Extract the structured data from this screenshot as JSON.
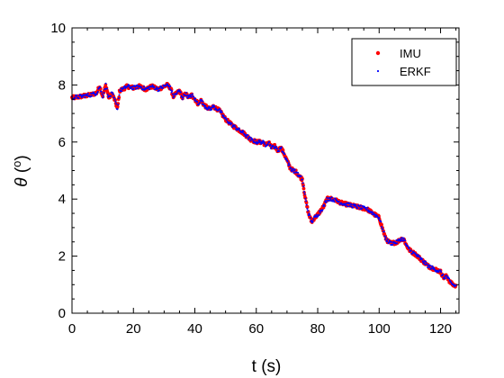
{
  "chart_data": {
    "type": "scatter",
    "title": "",
    "xlabel": "t (s)",
    "ylabel_symbol": "θ",
    "ylabel_open": " (",
    "ylabel_unit": "o",
    "ylabel_close": ")",
    "xlim": [
      0,
      126
    ],
    "ylim": [
      0,
      10
    ],
    "xticks": [
      0,
      20,
      40,
      60,
      80,
      100,
      120
    ],
    "yticks": [
      0,
      2,
      4,
      6,
      8,
      10
    ],
    "grid": false,
    "legend_position": "top-right",
    "series": [
      {
        "name": "IMU",
        "color": "#ff0000",
        "marker": "dot-large",
        "points": [
          [
            0,
            7.55
          ],
          [
            2,
            7.58
          ],
          [
            4,
            7.62
          ],
          [
            6,
            7.65
          ],
          [
            8,
            7.72
          ],
          [
            9,
            7.95
          ],
          [
            10,
            7.6
          ],
          [
            11,
            8.0
          ],
          [
            12,
            7.55
          ],
          [
            13,
            7.7
          ],
          [
            14,
            7.45
          ],
          [
            14.8,
            7.15
          ],
          [
            15.5,
            7.8
          ],
          [
            16.5,
            7.85
          ],
          [
            18,
            7.95
          ],
          [
            20,
            7.9
          ],
          [
            22,
            7.95
          ],
          [
            24,
            7.85
          ],
          [
            26,
            7.95
          ],
          [
            28,
            7.85
          ],
          [
            30,
            7.95
          ],
          [
            31,
            8.0
          ],
          [
            32,
            7.9
          ],
          [
            33,
            7.6
          ],
          [
            34,
            7.7
          ],
          [
            35,
            7.8
          ],
          [
            36,
            7.55
          ],
          [
            37,
            7.7
          ],
          [
            38,
            7.55
          ],
          [
            39,
            7.65
          ],
          [
            40,
            7.5
          ],
          [
            41,
            7.35
          ],
          [
            42,
            7.45
          ],
          [
            43,
            7.3
          ],
          [
            44,
            7.2
          ],
          [
            45,
            7.15
          ],
          [
            46,
            7.25
          ],
          [
            48,
            7.1
          ],
          [
            50,
            6.8
          ],
          [
            52,
            6.6
          ],
          [
            54,
            6.45
          ],
          [
            56,
            6.3
          ],
          [
            57,
            6.2
          ],
          [
            58,
            6.1
          ],
          [
            60,
            6.0
          ],
          [
            62,
            6.0
          ],
          [
            63,
            5.9
          ],
          [
            64,
            6.0
          ],
          [
            65,
            5.8
          ],
          [
            66,
            5.85
          ],
          [
            67,
            5.7
          ],
          [
            68,
            5.8
          ],
          [
            69,
            5.6
          ],
          [
            70,
            5.35
          ],
          [
            71,
            5.1
          ],
          [
            72,
            5.0
          ],
          [
            73,
            4.95
          ],
          [
            74,
            4.8
          ],
          [
            75,
            4.7
          ],
          [
            76,
            4.0
          ],
          [
            77,
            3.5
          ],
          [
            78,
            3.2
          ],
          [
            79,
            3.35
          ],
          [
            80,
            3.45
          ],
          [
            81,
            3.6
          ],
          [
            82,
            3.75
          ],
          [
            83,
            4.0
          ],
          [
            84,
            4.02
          ],
          [
            86,
            3.95
          ],
          [
            88,
            3.85
          ],
          [
            90,
            3.8
          ],
          [
            92,
            3.75
          ],
          [
            94,
            3.7
          ],
          [
            96,
            3.65
          ],
          [
            98,
            3.5
          ],
          [
            100,
            3.35
          ],
          [
            101,
            3.0
          ],
          [
            102,
            2.65
          ],
          [
            103,
            2.5
          ],
          [
            104,
            2.45
          ],
          [
            106,
            2.5
          ],
          [
            107,
            2.6
          ],
          [
            108,
            2.6
          ],
          [
            109,
            2.35
          ],
          [
            110,
            2.2
          ],
          [
            112,
            2.05
          ],
          [
            114,
            1.85
          ],
          [
            116,
            1.65
          ],
          [
            118,
            1.55
          ],
          [
            120,
            1.45
          ],
          [
            121,
            1.25
          ],
          [
            122,
            1.3
          ],
          [
            123,
            1.1
          ],
          [
            124,
            1.0
          ],
          [
            125,
            0.95
          ]
        ]
      },
      {
        "name": "ERKF",
        "color": "#0000ff",
        "marker": "dot-small",
        "points": [
          [
            0,
            7.55
          ],
          [
            2,
            7.58
          ],
          [
            4,
            7.62
          ],
          [
            6,
            7.65
          ],
          [
            8,
            7.72
          ],
          [
            9,
            7.95
          ],
          [
            10,
            7.6
          ],
          [
            11,
            8.0
          ],
          [
            12,
            7.55
          ],
          [
            13,
            7.7
          ],
          [
            14,
            7.45
          ],
          [
            14.8,
            7.15
          ],
          [
            15.5,
            7.8
          ],
          [
            16.5,
            7.85
          ],
          [
            18,
            7.95
          ],
          [
            20,
            7.9
          ],
          [
            22,
            7.95
          ],
          [
            24,
            7.85
          ],
          [
            26,
            7.95
          ],
          [
            28,
            7.85
          ],
          [
            30,
            7.95
          ],
          [
            31,
            8.0
          ],
          [
            32,
            7.9
          ],
          [
            33,
            7.6
          ],
          [
            34,
            7.7
          ],
          [
            35,
            7.8
          ],
          [
            36,
            7.55
          ],
          [
            37,
            7.7
          ],
          [
            38,
            7.55
          ],
          [
            39,
            7.65
          ],
          [
            40,
            7.5
          ],
          [
            41,
            7.35
          ],
          [
            42,
            7.45
          ],
          [
            43,
            7.3
          ],
          [
            44,
            7.2
          ],
          [
            45,
            7.15
          ],
          [
            46,
            7.25
          ],
          [
            48,
            7.1
          ],
          [
            50,
            6.8
          ],
          [
            52,
            6.6
          ],
          [
            54,
            6.45
          ],
          [
            56,
            6.3
          ],
          [
            57,
            6.2
          ],
          [
            58,
            6.1
          ],
          [
            60,
            6.0
          ],
          [
            62,
            6.0
          ],
          [
            63,
            5.9
          ],
          [
            64,
            6.0
          ],
          [
            65,
            5.8
          ],
          [
            66,
            5.85
          ],
          [
            67,
            5.7
          ],
          [
            68,
            5.8
          ],
          [
            69,
            5.6
          ],
          [
            70,
            5.35
          ],
          [
            71,
            5.1
          ],
          [
            72,
            5.0
          ],
          [
            73,
            4.95
          ],
          [
            74,
            4.8
          ],
          [
            75,
            4.7
          ],
          [
            76,
            4.0
          ],
          [
            77,
            3.5
          ],
          [
            78,
            3.2
          ],
          [
            79,
            3.35
          ],
          [
            80,
            3.45
          ],
          [
            81,
            3.6
          ],
          [
            82,
            3.75
          ],
          [
            83,
            4.0
          ],
          [
            84,
            4.02
          ],
          [
            86,
            3.95
          ],
          [
            88,
            3.85
          ],
          [
            90,
            3.8
          ],
          [
            92,
            3.75
          ],
          [
            94,
            3.7
          ],
          [
            96,
            3.65
          ],
          [
            98,
            3.5
          ],
          [
            100,
            3.35
          ],
          [
            101,
            3.0
          ],
          [
            102,
            2.65
          ],
          [
            103,
            2.5
          ],
          [
            104,
            2.45
          ],
          [
            106,
            2.5
          ],
          [
            107,
            2.6
          ],
          [
            108,
            2.6
          ],
          [
            109,
            2.35
          ],
          [
            110,
            2.2
          ],
          [
            112,
            2.05
          ],
          [
            114,
            1.85
          ],
          [
            116,
            1.65
          ],
          [
            118,
            1.55
          ],
          [
            120,
            1.45
          ],
          [
            121,
            1.25
          ],
          [
            122,
            1.3
          ],
          [
            123,
            1.1
          ],
          [
            124,
            1.0
          ],
          [
            125,
            0.95
          ]
        ]
      }
    ]
  }
}
